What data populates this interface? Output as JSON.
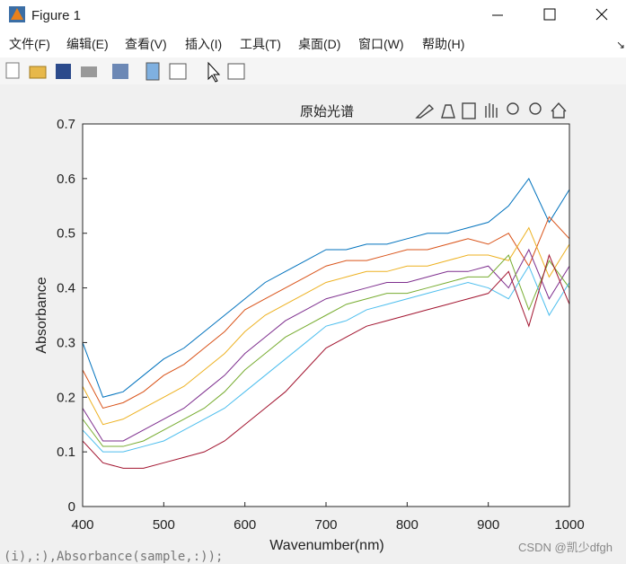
{
  "window": {
    "title": "Figure 1",
    "menu": [
      "文件(F)",
      "编辑(E)",
      "查看(V)",
      "插入(I)",
      "工具(T)",
      "桌面(D)",
      "窗口(W)",
      "帮助(H)"
    ],
    "background_code": "(i),:),Absorbance(sample,:));",
    "watermark": "CSDN @凯少dfgh"
  },
  "chart_data": {
    "type": "line",
    "title": "原始光谱",
    "x_label": "Wavenumber(nm)",
    "y_label": "Absorbance",
    "x": [
      400,
      425,
      450,
      475,
      500,
      525,
      550,
      575,
      600,
      625,
      650,
      675,
      700,
      725,
      750,
      775,
      800,
      825,
      850,
      875,
      900,
      925,
      950,
      975,
      1000
    ],
    "series": [
      {
        "color": "#0072BD",
        "values": [
          0.3,
          0.2,
          0.21,
          0.24,
          0.27,
          0.29,
          0.32,
          0.35,
          0.38,
          0.41,
          0.43,
          0.45,
          0.47,
          0.47,
          0.48,
          0.48,
          0.49,
          0.5,
          0.5,
          0.51,
          0.52,
          0.55,
          0.6,
          0.52,
          0.58
        ]
      },
      {
        "color": "#D95319",
        "values": [
          0.25,
          0.18,
          0.19,
          0.21,
          0.24,
          0.26,
          0.29,
          0.32,
          0.36,
          0.38,
          0.4,
          0.42,
          0.44,
          0.45,
          0.45,
          0.46,
          0.47,
          0.47,
          0.48,
          0.49,
          0.48,
          0.5,
          0.44,
          0.53,
          0.49
        ]
      },
      {
        "color": "#EDB120",
        "values": [
          0.22,
          0.15,
          0.16,
          0.18,
          0.2,
          0.22,
          0.25,
          0.28,
          0.32,
          0.35,
          0.37,
          0.39,
          0.41,
          0.42,
          0.43,
          0.43,
          0.44,
          0.44,
          0.45,
          0.46,
          0.46,
          0.45,
          0.51,
          0.42,
          0.48
        ]
      },
      {
        "color": "#7E2F8E",
        "values": [
          0.18,
          0.12,
          0.12,
          0.14,
          0.16,
          0.18,
          0.21,
          0.24,
          0.28,
          0.31,
          0.34,
          0.36,
          0.38,
          0.39,
          0.4,
          0.41,
          0.41,
          0.42,
          0.43,
          0.43,
          0.44,
          0.4,
          0.47,
          0.38,
          0.44
        ]
      },
      {
        "color": "#77AC30",
        "values": [
          0.16,
          0.11,
          0.11,
          0.12,
          0.14,
          0.16,
          0.18,
          0.21,
          0.25,
          0.28,
          0.31,
          0.33,
          0.35,
          0.37,
          0.38,
          0.39,
          0.39,
          0.4,
          0.41,
          0.42,
          0.42,
          0.46,
          0.36,
          0.45,
          0.4
        ]
      },
      {
        "color": "#4DBEEE",
        "values": [
          0.14,
          0.1,
          0.1,
          0.11,
          0.12,
          0.14,
          0.16,
          0.18,
          0.21,
          0.24,
          0.27,
          0.3,
          0.33,
          0.34,
          0.36,
          0.37,
          0.38,
          0.39,
          0.4,
          0.41,
          0.4,
          0.38,
          0.44,
          0.35,
          0.41
        ]
      },
      {
        "color": "#A2142F",
        "values": [
          0.12,
          0.08,
          0.07,
          0.07,
          0.08,
          0.09,
          0.1,
          0.12,
          0.15,
          0.18,
          0.21,
          0.25,
          0.29,
          0.31,
          0.33,
          0.34,
          0.35,
          0.36,
          0.37,
          0.38,
          0.39,
          0.43,
          0.33,
          0.46,
          0.37
        ]
      }
    ],
    "xlim": [
      400,
      1000
    ],
    "xticks": [
      400,
      500,
      600,
      700,
      800,
      900,
      1000
    ],
    "ylim": [
      0,
      0.7
    ],
    "yticks": [
      0,
      0.1,
      0.2,
      0.3,
      0.4,
      0.5,
      0.6,
      0.7
    ],
    "grid": false
  }
}
